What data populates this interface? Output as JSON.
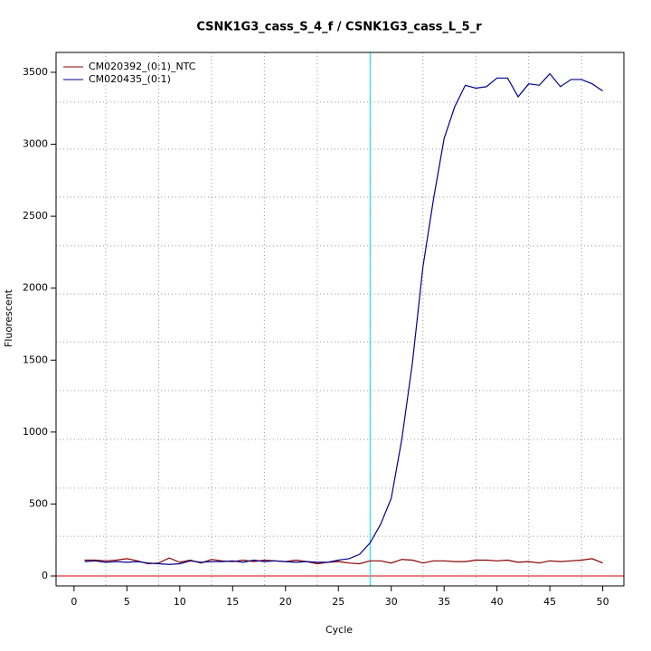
{
  "chart_data": {
    "type": "line",
    "title": "CSNK1G3_cass_S_4_f / CSNK1G3_cass_L_5_r",
    "xlabel": "Cycle",
    "ylabel": "Fluorescent",
    "x": [
      1,
      2,
      3,
      4,
      5,
      6,
      7,
      8,
      9,
      10,
      11,
      12,
      13,
      14,
      15,
      16,
      17,
      18,
      19,
      20,
      21,
      22,
      23,
      24,
      25,
      26,
      27,
      28,
      29,
      30,
      31,
      32,
      33,
      34,
      35,
      36,
      37,
      38,
      39,
      40,
      41,
      42,
      43,
      44,
      45,
      46,
      47,
      48,
      49,
      50
    ],
    "series": [
      {
        "name": "CM020392_(0:1)_NTC",
        "color": "#8b0000",
        "values": [
          110,
          110,
          105,
          110,
          120,
          105,
          85,
          90,
          125,
          95,
          110,
          90,
          115,
          105,
          100,
          110,
          100,
          110,
          105,
          100,
          110,
          100,
          85,
          95,
          100,
          90,
          85,
          105,
          105,
          90,
          115,
          110,
          90,
          105,
          105,
          100,
          100,
          110,
          110,
          105,
          110,
          95,
          100,
          90,
          105,
          100,
          105,
          110,
          120,
          90
        ]
      },
      {
        "name": "CM020435_(0:1)",
        "color": "#00008b",
        "values": [
          100,
          105,
          95,
          100,
          95,
          100,
          90,
          85,
          80,
          85,
          105,
          95,
          100,
          100,
          105,
          95,
          110,
          100,
          105,
          100,
          95,
          100,
          95,
          95,
          110,
          120,
          150,
          230,
          360,
          540,
          950,
          1480,
          2150,
          2620,
          3040,
          3260,
          3410,
          3390,
          3400,
          3460,
          3460,
          3330,
          3420,
          3410,
          3490,
          3400,
          3450,
          3450,
          3420,
          3370
        ]
      }
    ],
    "xlim": [
      -1.7,
      52
    ],
    "ylim": [
      -69,
      3638
    ],
    "xticks": [
      0,
      5,
      10,
      15,
      20,
      25,
      30,
      35,
      40,
      45,
      50
    ],
    "yticks": [
      0,
      500,
      1000,
      1500,
      2000,
      2500,
      3000,
      3500
    ],
    "xgrid": [
      3,
      8,
      13,
      18,
      23,
      28,
      33,
      38,
      43,
      48
    ],
    "ygrid": [
      276,
      610,
      949,
      1288,
      1627,
      1960,
      2294,
      2633,
      2966,
      3293
    ],
    "vlines": [
      {
        "value": 28,
        "color": "#00e5ee"
      }
    ],
    "hlines": [
      {
        "value": 0,
        "color": "#cd0000"
      }
    ],
    "legend": "top-left"
  }
}
